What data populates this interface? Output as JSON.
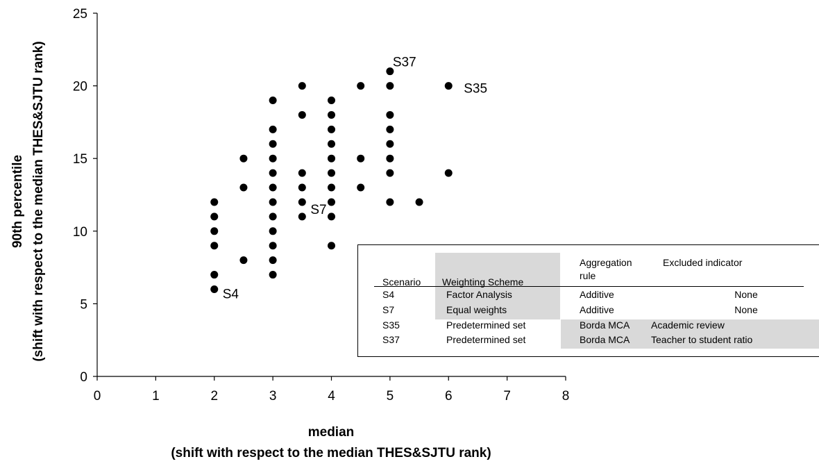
{
  "chart_data": {
    "type": "scatter",
    "xlabel_line1": "median",
    "xlabel_line2": "(shift with respect to the median THES&SJTU rank)",
    "ylabel_line1": "90th percentile",
    "ylabel_line2": "(shift with respect to the median THES&SJTU rank)",
    "xlim": [
      0,
      8
    ],
    "ylim": [
      0,
      25
    ],
    "x_ticks": [
      0,
      1,
      2,
      3,
      4,
      5,
      6,
      7,
      8
    ],
    "y_ticks": [
      0,
      5,
      10,
      15,
      20,
      25
    ],
    "grid": false,
    "points": [
      {
        "x": 2,
        "y": 6
      },
      {
        "x": 2,
        "y": 7
      },
      {
        "x": 2,
        "y": 9
      },
      {
        "x": 2,
        "y": 10
      },
      {
        "x": 2,
        "y": 11
      },
      {
        "x": 2,
        "y": 12
      },
      {
        "x": 2.5,
        "y": 8
      },
      {
        "x": 2.5,
        "y": 13
      },
      {
        "x": 2.5,
        "y": 15
      },
      {
        "x": 3,
        "y": 7
      },
      {
        "x": 3,
        "y": 8
      },
      {
        "x": 3,
        "y": 9
      },
      {
        "x": 3,
        "y": 10
      },
      {
        "x": 3,
        "y": 11
      },
      {
        "x": 3,
        "y": 12
      },
      {
        "x": 3,
        "y": 13
      },
      {
        "x": 3,
        "y": 14
      },
      {
        "x": 3,
        "y": 15
      },
      {
        "x": 3,
        "y": 16
      },
      {
        "x": 3,
        "y": 17
      },
      {
        "x": 3,
        "y": 19
      },
      {
        "x": 3.5,
        "y": 11
      },
      {
        "x": 3.5,
        "y": 12
      },
      {
        "x": 3.5,
        "y": 13
      },
      {
        "x": 3.5,
        "y": 14
      },
      {
        "x": 3.5,
        "y": 18
      },
      {
        "x": 3.5,
        "y": 20
      },
      {
        "x": 4,
        "y": 9
      },
      {
        "x": 4,
        "y": 11
      },
      {
        "x": 4,
        "y": 12
      },
      {
        "x": 4,
        "y": 13
      },
      {
        "x": 4,
        "y": 14
      },
      {
        "x": 4,
        "y": 15
      },
      {
        "x": 4,
        "y": 16
      },
      {
        "x": 4,
        "y": 17
      },
      {
        "x": 4,
        "y": 18
      },
      {
        "x": 4,
        "y": 19
      },
      {
        "x": 4.5,
        "y": 13
      },
      {
        "x": 4.5,
        "y": 15
      },
      {
        "x": 4.5,
        "y": 20
      },
      {
        "x": 5,
        "y": 12
      },
      {
        "x": 5,
        "y": 14
      },
      {
        "x": 5,
        "y": 15
      },
      {
        "x": 5,
        "y": 16
      },
      {
        "x": 5,
        "y": 17
      },
      {
        "x": 5,
        "y": 18
      },
      {
        "x": 5,
        "y": 20
      },
      {
        "x": 5,
        "y": 21
      },
      {
        "x": 5.5,
        "y": 12
      },
      {
        "x": 6,
        "y": 14
      },
      {
        "x": 6,
        "y": 20
      }
    ],
    "annotations": [
      {
        "label": "S4",
        "x": 2,
        "y": 6
      },
      {
        "label": "S7",
        "x": 3.5,
        "y": 12
      },
      {
        "label": "S35",
        "x": 6,
        "y": 20
      },
      {
        "label": "S37",
        "x": 5,
        "y": 21
      }
    ],
    "table": {
      "headers": {
        "scenario": "Scenario",
        "weighting": "Weighting Scheme",
        "aggregation_line1": "Aggregation",
        "aggregation_line2": "rule",
        "excluded": "Excluded indicator"
      },
      "rows": [
        {
          "scenario": "S4",
          "weighting": "Factor Analysis",
          "aggregation": "Additive",
          "excluded": "None"
        },
        {
          "scenario": "S7",
          "weighting": "Equal weights",
          "aggregation": "Additive",
          "excluded": "None"
        },
        {
          "scenario": "S35",
          "weighting": "Predetermined set",
          "aggregation": "Borda MCA",
          "excluded": "Academic review"
        },
        {
          "scenario": "S37",
          "weighting": "Predetermined set",
          "aggregation": "Borda MCA",
          "excluded": "Teacher to student ratio"
        }
      ]
    },
    "colors": {
      "marker": "#000000",
      "table_shade": "#d9d9d9"
    }
  }
}
